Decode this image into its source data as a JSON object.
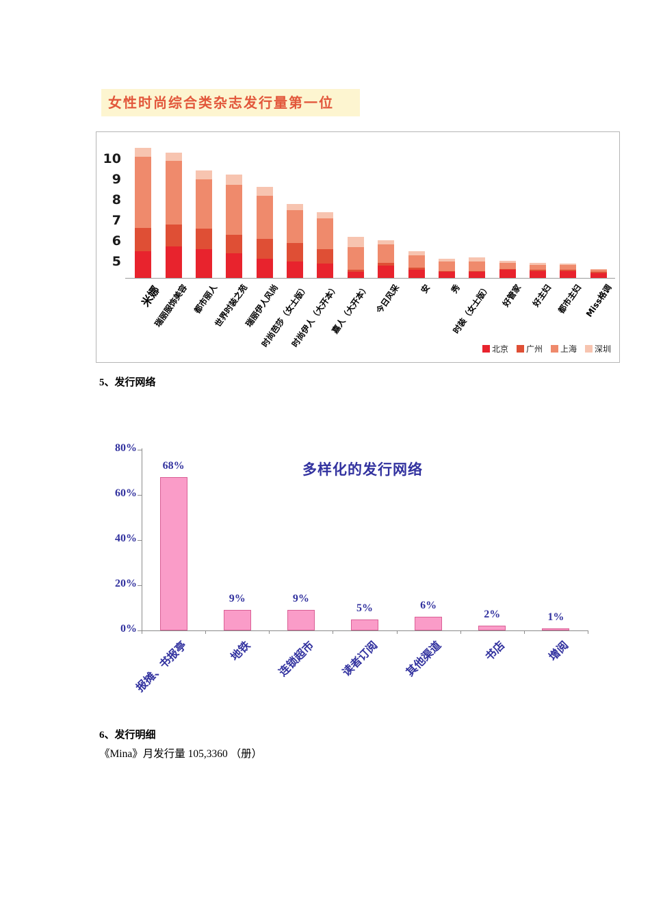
{
  "document": {
    "section5_heading": "5、发行网络",
    "section6_heading": "6、发行明细",
    "mina_line": "《Mina》月发行量 105,3360 （册）"
  },
  "chart_data": [
    {
      "type": "bar",
      "stacked": true,
      "title": "女性时尚综合类杂志发行量第一位",
      "title_color": "#e2573b",
      "title_bg": "#fdf5d0",
      "ymin": 4.2,
      "yticks": [
        10,
        9,
        8,
        7,
        6,
        5
      ],
      "legend_position": "bottom-right",
      "grid": false,
      "categories": [
        "米娜",
        "瑞丽服饰美容",
        "都市丽人",
        "世界时装之苑",
        "瑞丽伊人风尚",
        "时尚芭莎（女士版）",
        "时尚伊人（大开本）",
        "嘉人（大开本）",
        "今日风采",
        "安",
        "秀",
        "时装（女士版）",
        "好管家",
        "好主妇",
        "都市主妇",
        "Miss格调"
      ],
      "series": [
        {
          "name": "北京",
          "color": "#e8232d",
          "values": [
            1.3,
            1.55,
            1.4,
            1.2,
            0.95,
            0.8,
            0.7,
            0.3,
            0.6,
            0.4,
            0.3,
            0.3,
            0.4,
            0.35,
            0.35,
            0.25
          ]
        },
        {
          "name": "广州",
          "color": "#df4f35",
          "values": [
            1.15,
            1.05,
            1.0,
            0.9,
            0.95,
            0.9,
            0.7,
            0.1,
            0.15,
            0.1,
            0.05,
            0.05,
            0.05,
            0.05,
            0.05,
            0.05
          ]
        },
        {
          "name": "上海",
          "color": "#ef8a6c",
          "values": [
            3.45,
            3.1,
            2.4,
            2.45,
            2.1,
            1.6,
            1.5,
            1.1,
            0.9,
            0.6,
            0.45,
            0.45,
            0.3,
            0.25,
            0.25,
            0.1
          ]
        },
        {
          "name": "深圳",
          "color": "#f7c4b0",
          "values": [
            0.45,
            0.4,
            0.45,
            0.5,
            0.45,
            0.3,
            0.3,
            0.5,
            0.2,
            0.2,
            0.15,
            0.2,
            0.1,
            0.1,
            0.05,
            0.05
          ]
        }
      ]
    },
    {
      "type": "bar",
      "title": "多样化的发行网络",
      "categories": [
        "报摊、书报亭",
        "地铁",
        "连锁超市",
        "读者订阅",
        "其他渠道",
        "书店",
        "增阅"
      ],
      "values": [
        68,
        9,
        9,
        5,
        6,
        2,
        1
      ],
      "labels": [
        "68%",
        "9%",
        "9%",
        "5%",
        "6%",
        "2%",
        "1%"
      ],
      "yticks": [
        "0%",
        "20%",
        "40%",
        "60%",
        "80%"
      ],
      "ytick_values": [
        0,
        20,
        40,
        60,
        80
      ],
      "ylim": [
        0,
        80
      ],
      "grid": false,
      "bar_color": "#fa9cc8",
      "bar_border": "#d95f95",
      "text_color": "#32329f"
    }
  ]
}
